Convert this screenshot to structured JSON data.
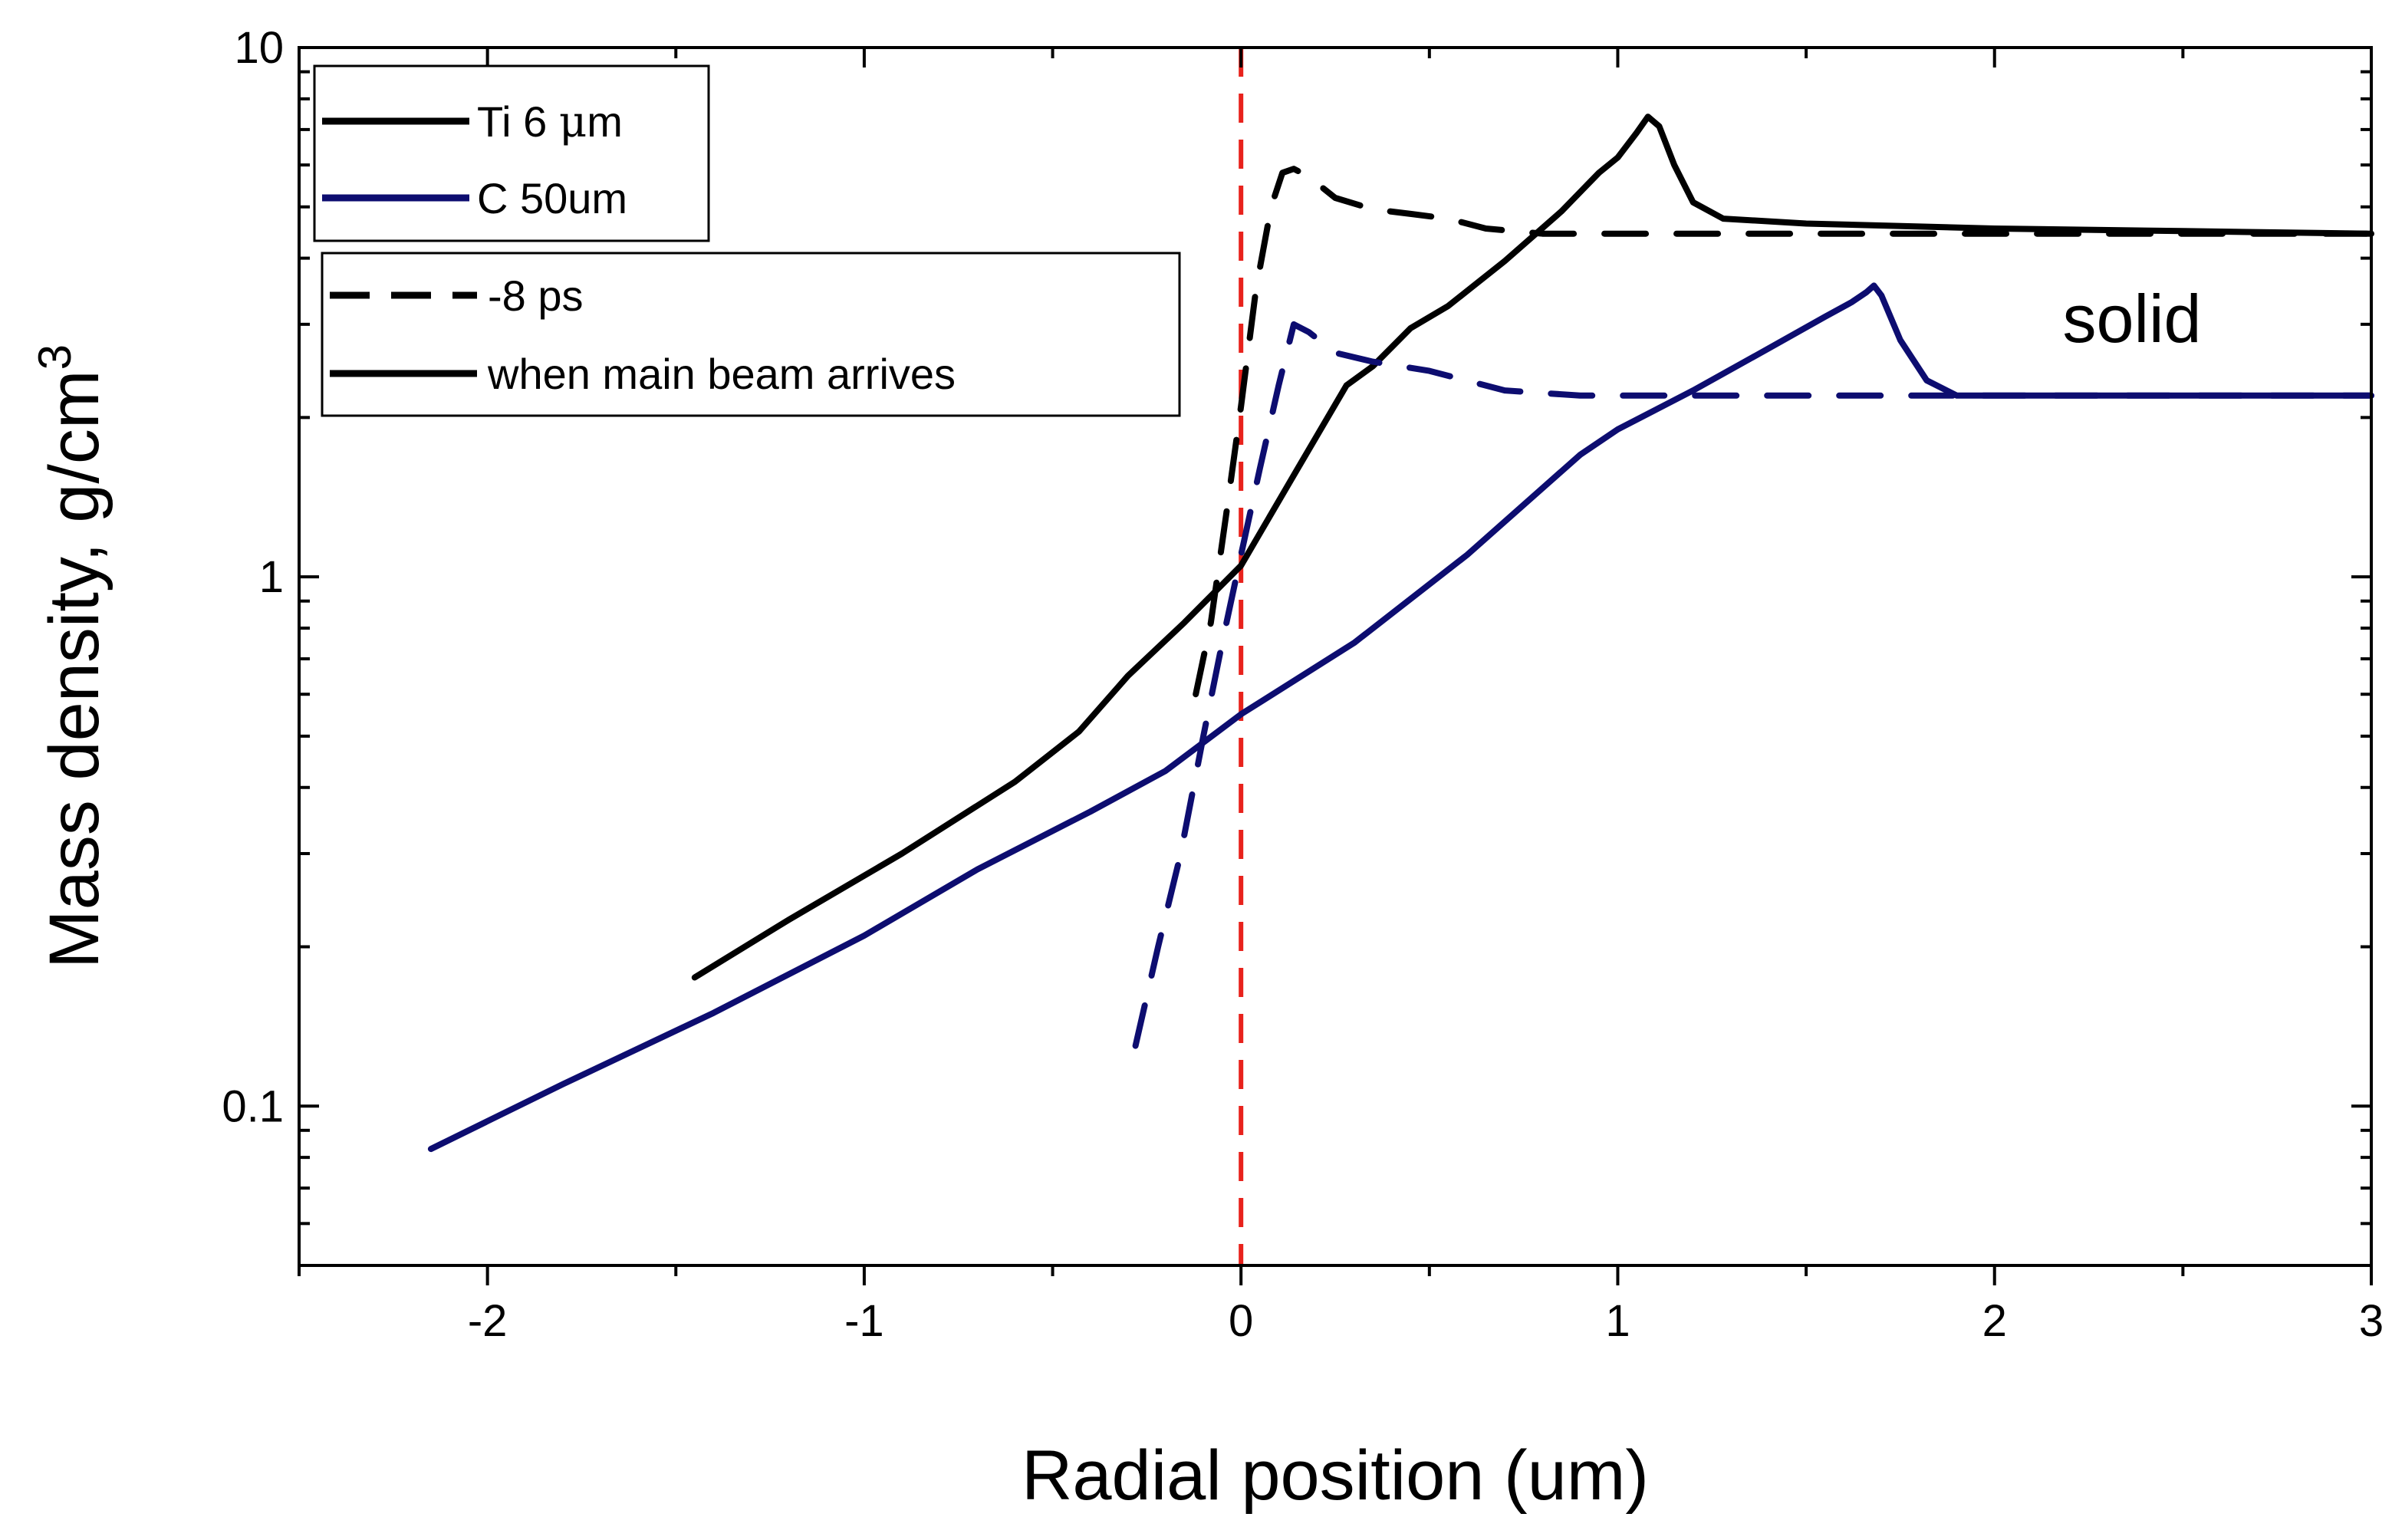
{
  "chart_data": {
    "type": "line",
    "title": "",
    "xlabel": "Radial position (um)",
    "ylabel": "Mass density, g/cm",
    "ylabel_superscript": "3",
    "xlim": [
      -2.5,
      3
    ],
    "ylim": [
      0.05,
      10
    ],
    "yscale": "log",
    "x_ticks": [
      {
        "value": -2,
        "label": "-2"
      },
      {
        "value": -1,
        "label": "-1"
      },
      {
        "value": 0,
        "label": "0"
      },
      {
        "value": 1,
        "label": "1"
      },
      {
        "value": 2,
        "label": "2"
      },
      {
        "value": 3,
        "label": "3"
      }
    ],
    "y_ticks": [
      {
        "value": 0.1,
        "label": "0.1"
      },
      {
        "value": 1,
        "label": "1"
      },
      {
        "value": 10,
        "label": "10"
      }
    ],
    "legend_materials": [
      {
        "label_prefix": "Ti 6 ",
        "label_symbol": "μ",
        "label_suffix": "m",
        "color": "#000000"
      },
      {
        "label_prefix": "C 50um",
        "label_symbol": "",
        "label_suffix": "",
        "color": "#0d0d70"
      }
    ],
    "legend_times": [
      {
        "label": "-8 ps",
        "dash": true
      },
      {
        "label": "when main beam arrives",
        "dash": false
      }
    ],
    "annotations": [
      {
        "text": "solid",
        "x": 2.35,
        "y": 3.0
      }
    ],
    "reference_line": {
      "x": 0,
      "color": "#e8221c",
      "style": "dashed"
    },
    "series": [
      {
        "name": "Ti 6 μm, when main beam arrives",
        "color": "#000000",
        "dash": false,
        "x": [
          -1.45,
          -1.2,
          -0.9,
          -0.6,
          -0.43,
          -0.3,
          -0.15,
          0.0,
          0.15,
          0.28,
          0.35,
          0.45,
          0.55,
          0.7,
          0.85,
          0.95,
          1.0,
          1.05,
          1.08,
          1.11,
          1.15,
          1.2,
          1.28,
          1.5,
          2.0,
          2.5,
          3.0
        ],
        "y": [
          0.175,
          0.225,
          0.3,
          0.41,
          0.51,
          0.65,
          0.82,
          1.05,
          1.6,
          2.3,
          2.5,
          2.95,
          3.25,
          3.95,
          4.9,
          5.8,
          6.2,
          6.9,
          7.4,
          7.1,
          6.0,
          5.1,
          4.75,
          4.65,
          4.55,
          4.5,
          4.45
        ]
      },
      {
        "name": "C 50um, when main beam arrives",
        "color": "#0d0d70",
        "dash": false,
        "x": [
          -2.15,
          -1.8,
          -1.4,
          -1.0,
          -0.7,
          -0.4,
          -0.2,
          0.0,
          0.3,
          0.6,
          0.9,
          1.0,
          1.2,
          1.4,
          1.55,
          1.62,
          1.66,
          1.68,
          1.7,
          1.75,
          1.82,
          1.9,
          2.2,
          2.6,
          3.0
        ],
        "y": [
          0.083,
          0.11,
          0.15,
          0.21,
          0.28,
          0.36,
          0.43,
          0.55,
          0.75,
          1.1,
          1.7,
          1.9,
          2.25,
          2.7,
          3.1,
          3.3,
          3.45,
          3.55,
          3.4,
          2.8,
          2.35,
          2.2,
          2.2,
          2.2,
          2.2
        ]
      },
      {
        "name": "Ti 6 μm, -8 ps",
        "color": "#000000",
        "dash": true,
        "x": [
          -0.12,
          -0.08,
          -0.04,
          0.0,
          0.04,
          0.08,
          0.11,
          0.14,
          0.18,
          0.25,
          0.35,
          0.45,
          0.55,
          0.65,
          0.8,
          1.0,
          1.2,
          1.5,
          2.0,
          2.5,
          3.0
        ],
        "y": [
          0.6,
          0.82,
          1.3,
          2.1,
          3.5,
          5.0,
          5.8,
          5.9,
          5.7,
          5.2,
          4.95,
          4.85,
          4.75,
          4.55,
          4.45,
          4.45,
          4.45,
          4.45,
          4.45,
          4.45,
          4.45
        ]
      },
      {
        "name": "C 50um, -8 ps",
        "color": "#0d0d70",
        "dash": true,
        "x": [
          -0.28,
          -0.22,
          -0.16,
          -0.1,
          -0.05,
          0.0,
          0.05,
          0.1,
          0.14,
          0.18,
          0.25,
          0.35,
          0.5,
          0.7,
          0.9,
          1.2,
          1.6,
          2.0,
          2.5,
          3.0
        ],
        "y": [
          0.13,
          0.2,
          0.3,
          0.5,
          0.75,
          1.1,
          1.6,
          2.3,
          3.0,
          2.9,
          2.65,
          2.55,
          2.45,
          2.25,
          2.2,
          2.2,
          2.2,
          2.2,
          2.2,
          2.2
        ]
      }
    ]
  }
}
